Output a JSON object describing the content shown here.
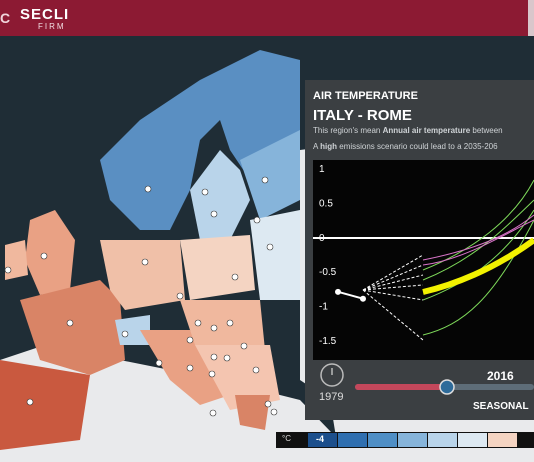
{
  "header": {
    "cut_text": "C",
    "logo": "SECLI",
    "logo_sub": "FIRM"
  },
  "panel": {
    "variable": "AIR TEMPERATURE",
    "region": "ITALY - ROME",
    "desc_a": "This region's mean ",
    "desc_b": "Annual air temperature",
    "desc_c": " between",
    "desc2_a": "A ",
    "desc2_b": "high",
    "desc2_c": " emissions scenario could lead to a 2035-206",
    "timeline": {
      "start_year": "1979",
      "current_year": "2016",
      "mode": "SEASONAL"
    }
  },
  "chart_data": {
    "type": "line",
    "y_ticks": [
      "1",
      "0.5",
      "0",
      "-0.5",
      "-1",
      "-1.5"
    ],
    "ylim": [
      -1.5,
      1
    ],
    "observed": [
      -0.8,
      -0.9
    ]
  },
  "legend": {
    "unit": "°C",
    "first_value": "-4",
    "colors": [
      "#1c4f8c",
      "#2f6fb0",
      "#4f8fc6",
      "#86b4da",
      "#b9d4ea",
      "#dde9f2",
      "#f4d4c2"
    ]
  },
  "colors": {
    "header": "#8c1a33",
    "sea": "#1f2d36",
    "mean_line": "#f2f200"
  }
}
